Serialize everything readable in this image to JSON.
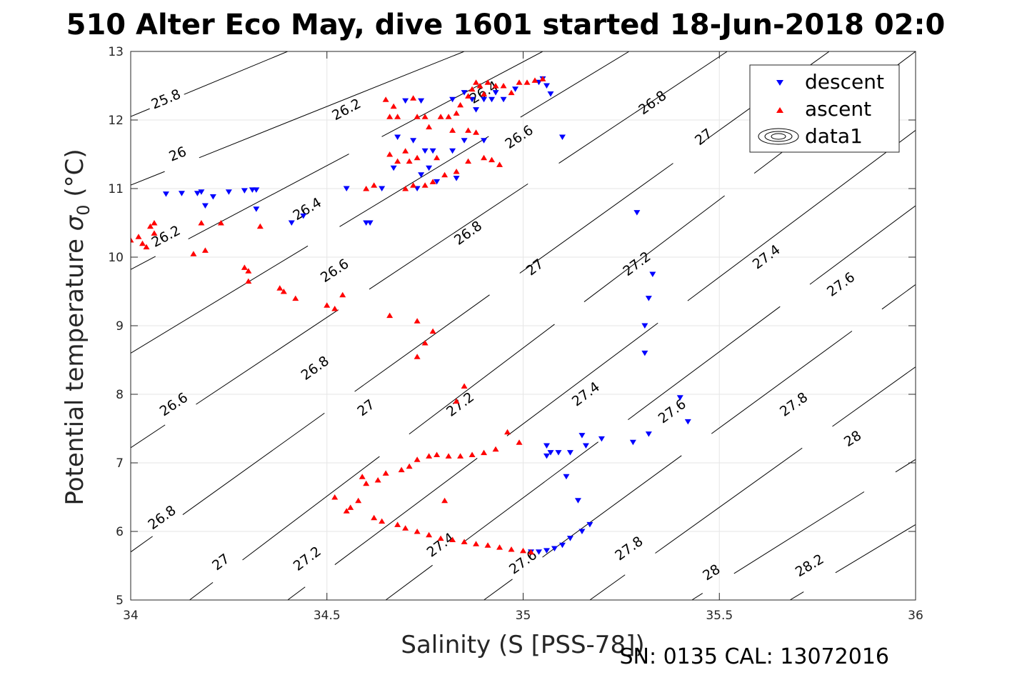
{
  "chart_data": {
    "type": "scatter",
    "title": "510 Alter Eco May, dive 1601 started 18-Jun-2018 02:0",
    "xlabel": "Salinity (S [PSS-78])",
    "ylabel_main": "Potential temperature ",
    "ylabel_symbol": "σ",
    "ylabel_sub": "0",
    "ylabel_unit": " (°C)",
    "footer": "SN: 0135  CAL: 13072016",
    "xlim": [
      34,
      36
    ],
    "ylim": [
      5,
      13
    ],
    "x_ticks": [
      34,
      34.5,
      35,
      35.5,
      36
    ],
    "x_tick_labels": [
      "34",
      "34.5",
      "35",
      "35.5",
      "36"
    ],
    "y_ticks": [
      5,
      6,
      7,
      8,
      9,
      10,
      11,
      12,
      13
    ],
    "y_tick_labels": [
      "5",
      "6",
      "7",
      "8",
      "9",
      "10",
      "11",
      "12",
      "13"
    ],
    "grid": true,
    "legend_position": "top-right",
    "legend": [
      {
        "name": "descent",
        "marker": "triangle-down",
        "color": "#0000ff"
      },
      {
        "name": "ascent",
        "marker": "triangle-up",
        "color": "#ff0000"
      },
      {
        "name": "data1",
        "marker": "contour",
        "color": "#000000"
      }
    ],
    "contours": [
      {
        "value": 25.8,
        "label": "25.8",
        "points": [
          [
            34.0,
            12.05
          ],
          [
            34.4,
            13.0
          ]
        ],
        "labels_at": [
          [
            34.09,
            12.3
          ]
        ]
      },
      {
        "value": 26.0,
        "label": "26",
        "points": [
          [
            34.0,
            11.05
          ],
          [
            34.85,
            13.0
          ]
        ],
        "labels_at": [
          [
            34.12,
            11.5
          ]
        ]
      },
      {
        "value": 26.2,
        "label": "26.2",
        "points": [
          [
            34.0,
            9.82
          ],
          [
            35.05,
            13.0
          ]
        ],
        "labels_at": [
          [
            34.09,
            10.3
          ],
          [
            34.55,
            12.15
          ]
        ]
      },
      {
        "value": 26.4,
        "label": "26.4",
        "points": [
          [
            34.0,
            8.6
          ],
          [
            35.27,
            13.0
          ]
        ],
        "labels_at": [
          [
            34.45,
            10.7
          ],
          [
            34.9,
            12.4
          ]
        ]
      },
      {
        "value": 26.6,
        "label": "26.6",
        "points": [
          [
            34.0,
            7.22
          ],
          [
            35.52,
            13.0
          ]
        ],
        "labels_at": [
          [
            34.11,
            7.85
          ],
          [
            34.52,
            9.8
          ],
          [
            34.99,
            11.75
          ]
        ]
      },
      {
        "value": 26.8,
        "label": "26.8",
        "points": [
          [
            34.0,
            5.7
          ],
          [
            35.78,
            13.0
          ]
        ],
        "labels_at": [
          [
            34.08,
            6.2
          ],
          [
            34.47,
            8.38
          ],
          [
            34.86,
            10.35
          ],
          [
            35.33,
            12.25
          ]
        ]
      },
      {
        "value": 27.0,
        "label": "27",
        "points": [
          [
            34.15,
            5.0
          ],
          [
            36.0,
            13.0
          ]
        ],
        "labels_at": [
          [
            34.23,
            5.55
          ],
          [
            34.6,
            7.8
          ],
          [
            35.03,
            9.85
          ],
          [
            35.46,
            11.75
          ]
        ]
      },
      {
        "value": 27.2,
        "label": "27.2",
        "points": [
          [
            34.4,
            5.0
          ],
          [
            36.0,
            11.85
          ]
        ],
        "labels_at": [
          [
            34.45,
            5.6
          ],
          [
            34.84,
            7.85
          ],
          [
            35.29,
            9.9
          ]
        ]
      },
      {
        "value": 27.4,
        "label": "27.4",
        "points": [
          [
            34.65,
            5.0
          ],
          [
            36.0,
            10.75
          ]
        ],
        "labels_at": [
          [
            34.79,
            5.8
          ],
          [
            35.16,
            8.0
          ],
          [
            35.62,
            10.0
          ]
        ]
      },
      {
        "value": 27.6,
        "label": "27.6",
        "points": [
          [
            34.9,
            5.0
          ],
          [
            36.0,
            9.6
          ]
        ],
        "labels_at": [
          [
            35.0,
            5.55
          ],
          [
            35.38,
            7.75
          ],
          [
            35.81,
            9.6
          ]
        ]
      },
      {
        "value": 27.8,
        "label": "27.8",
        "points": [
          [
            35.17,
            5.0
          ],
          [
            36.0,
            8.4
          ]
        ],
        "labels_at": [
          [
            35.27,
            5.75
          ],
          [
            35.69,
            7.85
          ]
        ]
      },
      {
        "value": 28.0,
        "label": "28",
        "points": [
          [
            35.43,
            5.0
          ],
          [
            36.0,
            7.05
          ]
        ],
        "labels_at": [
          [
            35.48,
            5.4
          ],
          [
            35.84,
            7.35
          ]
        ]
      },
      {
        "value": 28.2,
        "label": "28.2",
        "points": [
          [
            35.68,
            5.0
          ],
          [
            36.0,
            6.1
          ]
        ],
        "labels_at": [
          [
            35.73,
            5.5
          ]
        ]
      }
    ],
    "series": [
      {
        "name": "descent",
        "marker": "triangle-down",
        "color": "#0000ff",
        "points": [
          [
            35.05,
            12.6
          ],
          [
            35.06,
            12.5
          ],
          [
            35.07,
            12.38
          ],
          [
            35.04,
            12.55
          ],
          [
            34.98,
            12.45
          ],
          [
            34.95,
            12.3
          ],
          [
            34.92,
            12.3
          ],
          [
            34.9,
            12.3
          ],
          [
            34.87,
            12.3
          ],
          [
            34.85,
            12.4
          ],
          [
            34.82,
            12.3
          ],
          [
            34.74,
            12.28
          ],
          [
            34.7,
            12.28
          ],
          [
            34.88,
            12.15
          ],
          [
            34.93,
            12.4
          ],
          [
            35.1,
            11.75
          ],
          [
            34.68,
            11.75
          ],
          [
            34.72,
            11.7
          ],
          [
            34.75,
            11.55
          ],
          [
            34.77,
            11.55
          ],
          [
            34.82,
            11.55
          ],
          [
            34.85,
            11.7
          ],
          [
            34.9,
            11.7
          ],
          [
            34.67,
            11.3
          ],
          [
            34.74,
            11.2
          ],
          [
            34.76,
            11.3
          ],
          [
            34.78,
            11.1
          ],
          [
            34.83,
            11.15
          ],
          [
            34.73,
            11.0
          ],
          [
            34.64,
            11.0
          ],
          [
            34.55,
            11.0
          ],
          [
            34.09,
            10.92
          ],
          [
            34.13,
            10.93
          ],
          [
            34.17,
            10.93
          ],
          [
            34.18,
            10.95
          ],
          [
            34.21,
            10.88
          ],
          [
            34.19,
            10.75
          ],
          [
            34.25,
            10.95
          ],
          [
            34.29,
            10.97
          ],
          [
            34.31,
            10.98
          ],
          [
            34.32,
            10.98
          ],
          [
            34.32,
            10.7
          ],
          [
            34.41,
            10.5
          ],
          [
            34.6,
            10.5
          ],
          [
            34.61,
            10.5
          ],
          [
            34.44,
            10.6
          ],
          [
            35.29,
            10.65
          ],
          [
            35.33,
            9.75
          ],
          [
            35.32,
            9.4
          ],
          [
            35.31,
            9.0
          ],
          [
            35.31,
            8.6
          ],
          [
            35.4,
            7.95
          ],
          [
            35.42,
            7.6
          ],
          [
            35.32,
            7.42
          ],
          [
            35.28,
            7.3
          ],
          [
            35.15,
            7.4
          ],
          [
            35.16,
            7.25
          ],
          [
            35.2,
            7.35
          ],
          [
            35.12,
            7.15
          ],
          [
            35.09,
            7.15
          ],
          [
            35.07,
            7.15
          ],
          [
            35.06,
            7.1
          ],
          [
            35.06,
            7.25
          ],
          [
            35.11,
            6.8
          ],
          [
            35.14,
            6.45
          ],
          [
            35.17,
            6.1
          ],
          [
            35.15,
            6.0
          ],
          [
            35.12,
            5.9
          ],
          [
            35.1,
            5.8
          ],
          [
            35.08,
            5.75
          ],
          [
            35.06,
            5.72
          ],
          [
            35.04,
            5.7
          ],
          [
            35.02,
            5.7
          ]
        ]
      },
      {
        "name": "ascent",
        "marker": "triangle-up",
        "color": "#ff0000",
        "points": [
          [
            35.05,
            12.6
          ],
          [
            35.03,
            12.58
          ],
          [
            35.01,
            12.55
          ],
          [
            34.99,
            12.55
          ],
          [
            34.97,
            12.4
          ],
          [
            34.95,
            12.5
          ],
          [
            34.93,
            12.5
          ],
          [
            34.91,
            12.55
          ],
          [
            34.89,
            12.5
          ],
          [
            34.87,
            12.45
          ],
          [
            34.86,
            12.35
          ],
          [
            34.88,
            12.55
          ],
          [
            34.9,
            12.38
          ],
          [
            34.65,
            12.3
          ],
          [
            34.67,
            12.2
          ],
          [
            34.72,
            12.32
          ],
          [
            34.84,
            12.22
          ],
          [
            34.66,
            12.05
          ],
          [
            34.68,
            12.05
          ],
          [
            34.73,
            12.05
          ],
          [
            34.75,
            12.05
          ],
          [
            34.79,
            12.05
          ],
          [
            34.81,
            12.05
          ],
          [
            34.83,
            12.1
          ],
          [
            34.76,
            11.9
          ],
          [
            34.82,
            11.85
          ],
          [
            34.86,
            11.85
          ],
          [
            34.88,
            11.82
          ],
          [
            34.7,
            11.55
          ],
          [
            34.73,
            11.45
          ],
          [
            34.66,
            11.5
          ],
          [
            34.71,
            11.4
          ],
          [
            34.68,
            11.4
          ],
          [
            34.78,
            11.45
          ],
          [
            34.86,
            11.4
          ],
          [
            34.9,
            11.45
          ],
          [
            34.92,
            11.42
          ],
          [
            34.94,
            11.35
          ],
          [
            34.83,
            11.25
          ],
          [
            34.8,
            11.2
          ],
          [
            34.77,
            11.1
          ],
          [
            34.75,
            11.05
          ],
          [
            34.72,
            11.05
          ],
          [
            34.7,
            11.0
          ],
          [
            34.62,
            11.05
          ],
          [
            34.6,
            11.0
          ],
          [
            34.0,
            10.25
          ],
          [
            34.02,
            10.3
          ],
          [
            34.03,
            10.2
          ],
          [
            34.05,
            10.45
          ],
          [
            34.06,
            10.35
          ],
          [
            34.04,
            10.15
          ],
          [
            34.06,
            10.5
          ],
          [
            34.18,
            10.5
          ],
          [
            34.23,
            10.5
          ],
          [
            34.29,
            9.85
          ],
          [
            34.3,
            9.8
          ],
          [
            34.3,
            9.65
          ],
          [
            34.33,
            10.45
          ],
          [
            34.16,
            10.05
          ],
          [
            34.19,
            10.1
          ],
          [
            34.38,
            9.55
          ],
          [
            34.39,
            9.5
          ],
          [
            34.42,
            9.4
          ],
          [
            34.5,
            9.3
          ],
          [
            34.52,
            9.25
          ],
          [
            34.54,
            9.45
          ],
          [
            34.66,
            9.15
          ],
          [
            34.73,
            9.07
          ],
          [
            34.77,
            8.92
          ],
          [
            34.75,
            8.75
          ],
          [
            34.73,
            8.55
          ],
          [
            34.85,
            8.12
          ],
          [
            34.83,
            7.9
          ],
          [
            34.96,
            7.45
          ],
          [
            34.99,
            7.3
          ],
          [
            34.93,
            7.2
          ],
          [
            34.9,
            7.15
          ],
          [
            34.87,
            7.12
          ],
          [
            34.84,
            7.1
          ],
          [
            34.81,
            7.1
          ],
          [
            34.78,
            7.12
          ],
          [
            34.76,
            7.1
          ],
          [
            34.73,
            7.05
          ],
          [
            34.71,
            6.95
          ],
          [
            34.69,
            6.9
          ],
          [
            34.65,
            6.85
          ],
          [
            34.63,
            6.75
          ],
          [
            34.59,
            6.8
          ],
          [
            34.6,
            6.7
          ],
          [
            34.58,
            6.45
          ],
          [
            34.56,
            6.35
          ],
          [
            34.55,
            6.3
          ],
          [
            34.52,
            6.5
          ],
          [
            34.62,
            6.2
          ],
          [
            34.64,
            6.15
          ],
          [
            34.68,
            6.1
          ],
          [
            34.7,
            6.05
          ],
          [
            34.73,
            6.0
          ],
          [
            34.76,
            5.95
          ],
          [
            34.79,
            5.9
          ],
          [
            34.82,
            5.88
          ],
          [
            34.85,
            5.85
          ],
          [
            34.88,
            5.82
          ],
          [
            34.91,
            5.8
          ],
          [
            34.94,
            5.77
          ],
          [
            34.97,
            5.74
          ],
          [
            35.0,
            5.72
          ],
          [
            35.02,
            5.7
          ],
          [
            34.8,
            6.45
          ]
        ]
      }
    ]
  }
}
